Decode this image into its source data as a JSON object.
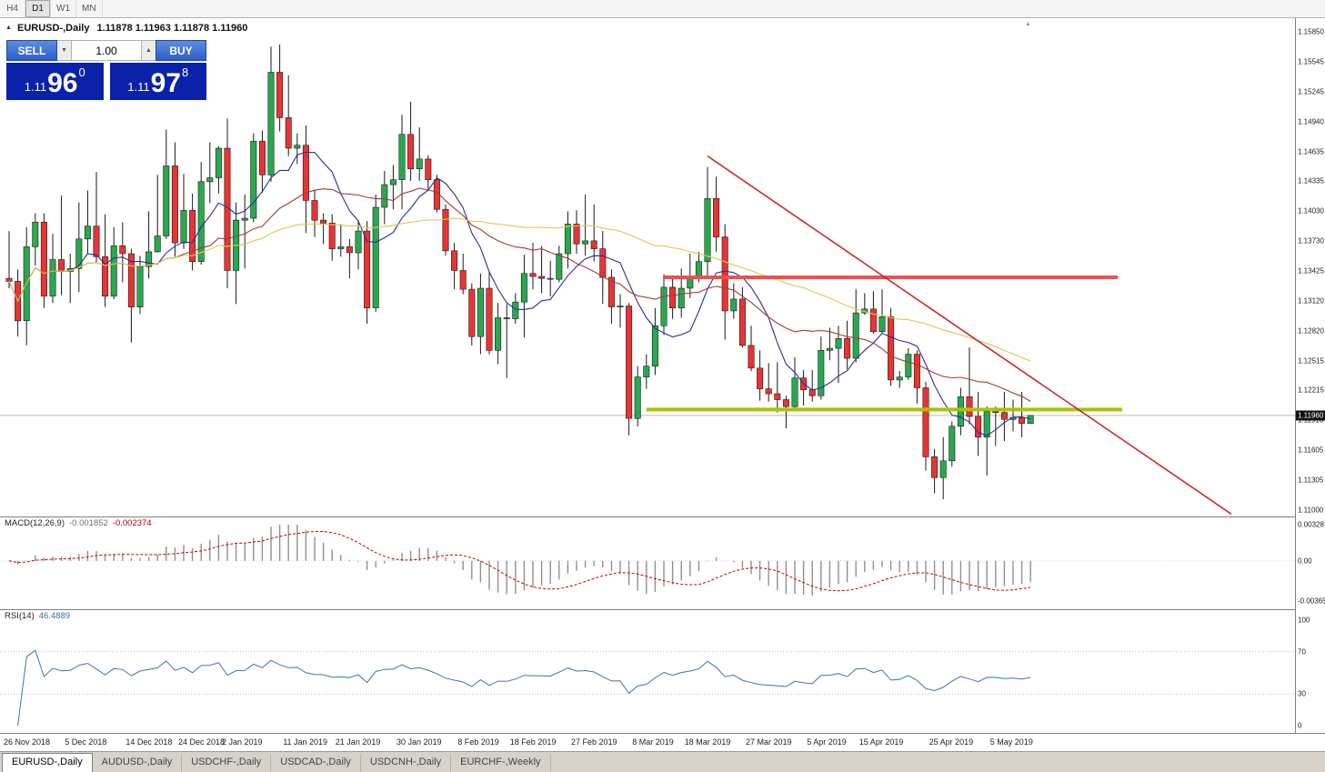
{
  "icons": {
    "title_arrow": "▲",
    "spin_down": "▼",
    "spin_up": "▲",
    "chart_shift": "▲"
  },
  "toolbar": {
    "timeframes": [
      {
        "label": "H4",
        "active": false
      },
      {
        "label": "D1",
        "active": true
      },
      {
        "label": "W1",
        "active": false
      },
      {
        "label": "MN",
        "active": false
      }
    ]
  },
  "chart_title": {
    "symbol": "EURUSD-,Daily",
    "ohlc": "1.11878 1.11963 1.11878 1.11960"
  },
  "trade_panel": {
    "sell_label": "SELL",
    "buy_label": "BUY",
    "volume": "1.00",
    "sell_price": {
      "prefix": "1.11",
      "big": "96",
      "sup": "0"
    },
    "buy_price": {
      "prefix": "1.11",
      "big": "97",
      "sup": "8"
    }
  },
  "price_axis": {
    "ticks": [
      "1.15850",
      "1.15545",
      "1.15245",
      "1.14940",
      "1.14635",
      "1.14335",
      "1.14030",
      "1.13730",
      "1.13425",
      "1.13120",
      "1.12820",
      "1.12515",
      "1.12215",
      "1.11910",
      "1.11605",
      "1.11305",
      "1.11000"
    ],
    "current": "1.11960"
  },
  "macd_panel": {
    "name": "MACD(12,26,9)",
    "value_main": "-0.001852",
    "value_signal": "-0.002374",
    "axis": [
      "0.003287",
      "0.00",
      "-0.00365"
    ]
  },
  "rsi_panel": {
    "name": "RSI(14)",
    "value": "46.4889",
    "axis": [
      "100",
      "70",
      "30",
      "0"
    ]
  },
  "bottom_tabs": [
    {
      "label": "EURUSD-,Daily",
      "active": true
    },
    {
      "label": "AUDUSD-,Daily",
      "active": false
    },
    {
      "label": "USDCHF-,Daily",
      "active": false
    },
    {
      "label": "USDCAD-,Daily",
      "active": false
    },
    {
      "label": "USDCNH-,Daily",
      "active": false
    },
    {
      "label": "EURCHF-,Weekly",
      "active": false
    }
  ],
  "chart_data": {
    "type": "candlestick",
    "symbol": "EURUSD",
    "timeframe": "Daily",
    "y_range": [
      1.11,
      1.1585
    ],
    "bid_line_price": 1.1196,
    "ohlc": [
      [
        1.1335,
        1.1383,
        1.1325,
        1.1332
      ],
      [
        1.1332,
        1.1344,
        1.1276,
        1.1292
      ],
      [
        1.1292,
        1.1387,
        1.1267,
        1.1367
      ],
      [
        1.1367,
        1.1401,
        1.1348,
        1.1392
      ],
      [
        1.1392,
        1.1401,
        1.1305,
        1.1317
      ],
      [
        1.1317,
        1.138,
        1.131,
        1.1354
      ],
      [
        1.1354,
        1.1419,
        1.1318,
        1.1342
      ],
      [
        1.1342,
        1.136,
        1.131,
        1.1345
      ],
      [
        1.1345,
        1.1412,
        1.1321,
        1.1375
      ],
      [
        1.1375,
        1.1424,
        1.136,
        1.1388
      ],
      [
        1.1388,
        1.1443,
        1.1351,
        1.1357
      ],
      [
        1.1357,
        1.14,
        1.1306,
        1.1317
      ],
      [
        1.1317,
        1.1387,
        1.1314,
        1.1368
      ],
      [
        1.1368,
        1.1392,
        1.1331,
        1.136
      ],
      [
        1.136,
        1.1365,
        1.127,
        1.1306
      ],
      [
        1.1306,
        1.1358,
        1.1299,
        1.1347
      ],
      [
        1.1347,
        1.1403,
        1.1335,
        1.1362
      ],
      [
        1.1362,
        1.144,
        1.1361,
        1.1378
      ],
      [
        1.1378,
        1.1486,
        1.1375,
        1.1449
      ],
      [
        1.1449,
        1.1473,
        1.1357,
        1.1371
      ],
      [
        1.1371,
        1.1441,
        1.1365,
        1.1404
      ],
      [
        1.1404,
        1.1421,
        1.1343,
        1.1352
      ],
      [
        1.1352,
        1.1453,
        1.1349,
        1.1433
      ],
      [
        1.1433,
        1.1473,
        1.1411,
        1.1437
      ],
      [
        1.1437,
        1.1469,
        1.1421,
        1.1467
      ],
      [
        1.1467,
        1.1497,
        1.1325,
        1.1343
      ],
      [
        1.1343,
        1.1412,
        1.1309,
        1.1394
      ],
      [
        1.1394,
        1.142,
        1.1345,
        1.1396
      ],
      [
        1.1396,
        1.1482,
        1.1392,
        1.1474
      ],
      [
        1.1474,
        1.1485,
        1.1422,
        1.144
      ],
      [
        1.144,
        1.157,
        1.1433,
        1.1544
      ],
      [
        1.1544,
        1.1572,
        1.1484,
        1.1498
      ],
      [
        1.1498,
        1.1541,
        1.1459,
        1.1467
      ],
      [
        1.1467,
        1.1482,
        1.1451,
        1.147
      ],
      [
        1.147,
        1.149,
        1.1381,
        1.1414
      ],
      [
        1.1414,
        1.1425,
        1.1377,
        1.1394
      ],
      [
        1.1394,
        1.1401,
        1.137,
        1.1391
      ],
      [
        1.1391,
        1.14,
        1.1353,
        1.1365
      ],
      [
        1.1365,
        1.139,
        1.1357,
        1.1367
      ],
      [
        1.1367,
        1.1375,
        1.1335,
        1.1361
      ],
      [
        1.1361,
        1.1394,
        1.1344,
        1.1383
      ],
      [
        1.1383,
        1.1393,
        1.1289,
        1.1305
      ],
      [
        1.1305,
        1.142,
        1.1301,
        1.1407
      ],
      [
        1.1407,
        1.1444,
        1.139,
        1.143
      ],
      [
        1.143,
        1.145,
        1.1405,
        1.1435
      ],
      [
        1.1435,
        1.1501,
        1.1405,
        1.1481
      ],
      [
        1.1481,
        1.1514,
        1.1434,
        1.1446
      ],
      [
        1.1446,
        1.1488,
        1.1434,
        1.1456
      ],
      [
        1.1456,
        1.146,
        1.1425,
        1.1435
      ],
      [
        1.1435,
        1.144,
        1.1402,
        1.1405
      ],
      [
        1.1405,
        1.141,
        1.1358,
        1.1363
      ],
      [
        1.1363,
        1.1371,
        1.1324,
        1.1343
      ],
      [
        1.1343,
        1.136,
        1.1319,
        1.1324
      ],
      [
        1.1324,
        1.133,
        1.1267,
        1.1276
      ],
      [
        1.1276,
        1.134,
        1.1258,
        1.1325
      ],
      [
        1.1325,
        1.1342,
        1.1258,
        1.1262
      ],
      [
        1.1262,
        1.131,
        1.1248,
        1.1295
      ],
      [
        1.1295,
        1.1309,
        1.1234,
        1.1294
      ],
      [
        1.1294,
        1.132,
        1.1289,
        1.1311
      ],
      [
        1.1311,
        1.1359,
        1.1275,
        1.134
      ],
      [
        1.134,
        1.1371,
        1.1324,
        1.1337
      ],
      [
        1.1337,
        1.1368,
        1.132,
        1.1335
      ],
      [
        1.1335,
        1.1353,
        1.1317,
        1.1334
      ],
      [
        1.1334,
        1.1368,
        1.1331,
        1.136
      ],
      [
        1.136,
        1.1403,
        1.1345,
        1.139
      ],
      [
        1.139,
        1.1404,
        1.136,
        1.137
      ],
      [
        1.137,
        1.142,
        1.1358,
        1.1373
      ],
      [
        1.1373,
        1.141,
        1.1352,
        1.1365
      ],
      [
        1.1365,
        1.1383,
        1.1309,
        1.1336
      ],
      [
        1.1336,
        1.1344,
        1.1289,
        1.1306
      ],
      [
        1.1306,
        1.1319,
        1.1285,
        1.1307
      ],
      [
        1.1307,
        1.131,
        1.1176,
        1.1193
      ],
      [
        1.1193,
        1.1246,
        1.1185,
        1.1235
      ],
      [
        1.1235,
        1.1258,
        1.1223,
        1.1246
      ],
      [
        1.1246,
        1.1305,
        1.1237,
        1.1287
      ],
      [
        1.1287,
        1.1339,
        1.1278,
        1.1326
      ],
      [
        1.1326,
        1.1336,
        1.1294,
        1.1305
      ],
      [
        1.1305,
        1.1345,
        1.1295,
        1.1325
      ],
      [
        1.1325,
        1.136,
        1.1315,
        1.1336
      ],
      [
        1.1336,
        1.1362,
        1.1331,
        1.1352
      ],
      [
        1.1352,
        1.1448,
        1.1335,
        1.1416
      ],
      [
        1.1416,
        1.1438,
        1.1362,
        1.1377
      ],
      [
        1.1377,
        1.139,
        1.1273,
        1.1302
      ],
      [
        1.1302,
        1.133,
        1.1294,
        1.1314
      ],
      [
        1.1314,
        1.1326,
        1.1265,
        1.1267
      ],
      [
        1.1267,
        1.1287,
        1.1241,
        1.1244
      ],
      [
        1.1244,
        1.1262,
        1.1211,
        1.1223
      ],
      [
        1.1223,
        1.1249,
        1.121,
        1.1218
      ],
      [
        1.1218,
        1.125,
        1.1199,
        1.1212
      ],
      [
        1.1212,
        1.1216,
        1.1183,
        1.1205
      ],
      [
        1.1205,
        1.1255,
        1.12,
        1.1234
      ],
      [
        1.1234,
        1.1242,
        1.1206,
        1.1222
      ],
      [
        1.1222,
        1.1242,
        1.121,
        1.1216
      ],
      [
        1.1216,
        1.1276,
        1.1212,
        1.1262
      ],
      [
        1.1262,
        1.1285,
        1.1252,
        1.1264
      ],
      [
        1.1264,
        1.1287,
        1.1229,
        1.1274
      ],
      [
        1.1274,
        1.1292,
        1.1243,
        1.1254
      ],
      [
        1.1254,
        1.1324,
        1.125,
        1.13
      ],
      [
        1.13,
        1.132,
        1.1298,
        1.1304
      ],
      [
        1.1304,
        1.1322,
        1.1279,
        1.1281
      ],
      [
        1.1281,
        1.1324,
        1.1279,
        1.1296
      ],
      [
        1.1296,
        1.1305,
        1.1226,
        1.1232
      ],
      [
        1.1232,
        1.1241,
        1.1224,
        1.1235
      ],
      [
        1.1235,
        1.1264,
        1.1232,
        1.1258
      ],
      [
        1.1258,
        1.1262,
        1.1208,
        1.1224
      ],
      [
        1.1224,
        1.123,
        1.114,
        1.1154
      ],
      [
        1.1154,
        1.1162,
        1.1117,
        1.1133
      ],
      [
        1.1133,
        1.1174,
        1.1111,
        1.115
      ],
      [
        1.115,
        1.119,
        1.1144,
        1.1185
      ],
      [
        1.1185,
        1.1224,
        1.1176,
        1.1215
      ],
      [
        1.1215,
        1.1265,
        1.1187,
        1.1195
      ],
      [
        1.1195,
        1.122,
        1.1155,
        1.1174
      ],
      [
        1.1174,
        1.1205,
        1.1135,
        1.12
      ],
      [
        1.12,
        1.1205,
        1.1165,
        1.1199
      ],
      [
        1.1199,
        1.122,
        1.117,
        1.1192
      ],
      [
        1.1192,
        1.1212,
        1.118,
        1.1194
      ],
      [
        1.1194,
        1.122,
        1.1174,
        1.1188
      ],
      [
        1.11878,
        1.11963,
        1.11878,
        1.1196
      ]
    ],
    "x_labels": [
      [
        0,
        "26 Nov 2018"
      ],
      [
        7,
        "5 Dec 2018"
      ],
      [
        14,
        "14 Dec 2018"
      ],
      [
        20,
        "24 Dec 2018"
      ],
      [
        25,
        "2 Jan 2019"
      ],
      [
        32,
        "11 Jan 2019"
      ],
      [
        38,
        "21 Jan 2019"
      ],
      [
        45,
        "30 Jan 2019"
      ],
      [
        52,
        "8 Feb 2019"
      ],
      [
        58,
        "18 Feb 2019"
      ],
      [
        65,
        "27 Feb 2019"
      ],
      [
        72,
        "8 Mar 2019"
      ],
      [
        78,
        "18 Mar 2019"
      ],
      [
        85,
        "27 Mar 2019"
      ],
      [
        92,
        "5 Apr 2019"
      ],
      [
        98,
        "15 Apr 2019"
      ],
      [
        106,
        "25 Apr 2019"
      ],
      [
        113,
        "5 May 2019"
      ]
    ],
    "moving_averages": [
      {
        "period": 8,
        "color": "#2c2c9e"
      },
      {
        "period": 20,
        "color": "#a83838"
      },
      {
        "period": 50,
        "color": "#ddc94e"
      }
    ],
    "objects": {
      "resistance_hline": {
        "price": 1.1336,
        "from_bar": 75,
        "to_bar": 127,
        "color": "#f24f4f",
        "width": 4
      },
      "support_hline": {
        "price": 1.1202,
        "from_bar": 73,
        "to_bar": 127.5,
        "color": "#a9c400",
        "width": 4
      },
      "trendline": {
        "from": {
          "bar": 80,
          "price": 1.1459
        },
        "to": {
          "bar": 140,
          "price": 1.1096
        },
        "color": "#cc1f1f",
        "width": 1.5
      }
    },
    "macd": {
      "fast": 12,
      "slow": 26,
      "signal": 9,
      "main": -0.001852,
      "signal_value": -0.002374,
      "scale": [
        0.003287,
        -0.00365
      ]
    },
    "rsi": {
      "period": 14,
      "value": 46.4889,
      "levels": [
        70,
        30
      ]
    }
  }
}
